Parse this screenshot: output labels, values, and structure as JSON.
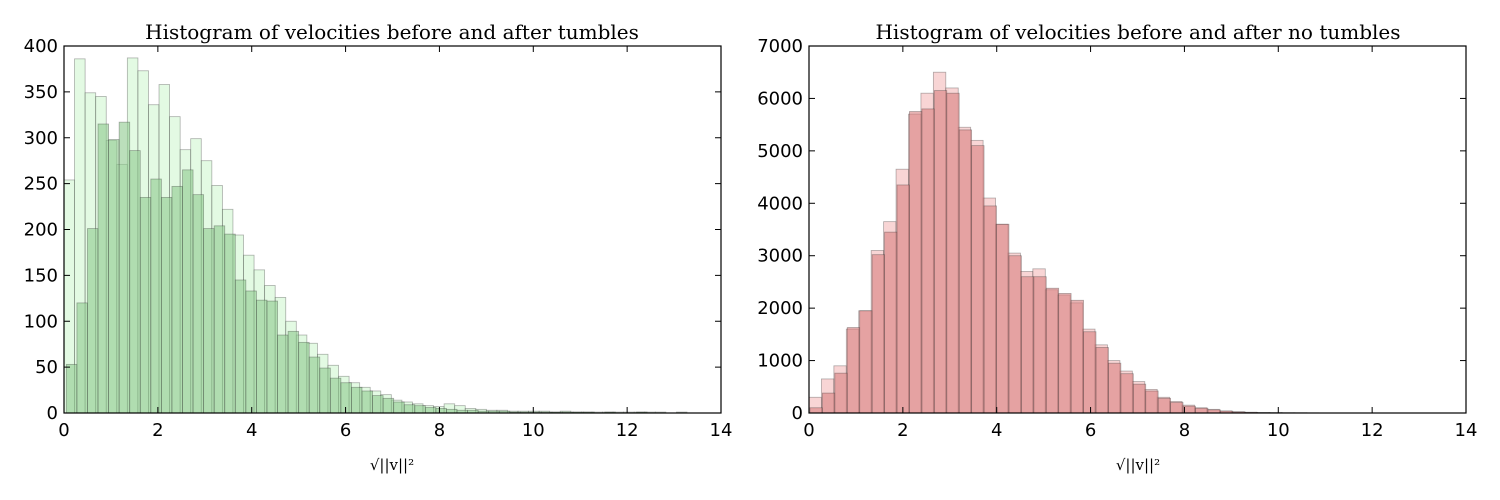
{
  "chart_data": [
    {
      "type": "bar",
      "title": "Histogram of velocities before and after tumbles",
      "xlabel": "√||v||²",
      "ylabel": "",
      "xlim": [
        0,
        14
      ],
      "ylim": [
        0,
        400
      ],
      "xticks": [
        "0",
        "2",
        "4",
        "6",
        "8",
        "10",
        "12",
        "14"
      ],
      "yticks": [
        "0",
        "50",
        "100",
        "150",
        "200",
        "250",
        "300",
        "350",
        "400"
      ],
      "grid": false,
      "colors": {
        "dark": "#8ec98e",
        "light": "#ccf5cc",
        "edge": "#222222"
      },
      "bin_width": 0.225,
      "series": [
        {
          "x_start": 0,
          "values": [
            254,
            386,
            349,
            345,
            297,
            271,
            387,
            373,
            336,
            358,
            323,
            287,
            299,
            275,
            248,
            222,
            194,
            172,
            156,
            139,
            126,
            100,
            85,
            76,
            64,
            52,
            40,
            33,
            28,
            24,
            20,
            14,
            12,
            10,
            8,
            7,
            10,
            8,
            5,
            4,
            3,
            3,
            2,
            2,
            2,
            2,
            1,
            2,
            1,
            1,
            1,
            1,
            1,
            1,
            1,
            1,
            1,
            0,
            1
          ]
        },
        {
          "x_start": 0.05,
          "values": [
            53,
            120,
            201,
            315,
            298,
            317,
            286,
            235,
            255,
            235,
            247,
            265,
            238,
            201,
            204,
            195,
            145,
            133,
            123,
            122,
            85,
            89,
            77,
            61,
            49,
            38,
            33,
            28,
            24,
            19,
            16,
            12,
            9,
            8,
            6,
            5,
            4,
            3,
            3,
            2,
            2,
            2,
            1,
            1,
            1,
            1,
            1,
            1,
            1,
            1,
            0,
            1,
            0,
            0,
            1,
            0,
            0,
            0
          ]
        }
      ]
    },
    {
      "type": "bar",
      "title": "Histogram of velocities before and after no tumbles",
      "xlabel": "√||v||²",
      "ylabel": "",
      "xlim": [
        0,
        14
      ],
      "ylim": [
        0,
        7000
      ],
      "xticks": [
        "0",
        "2",
        "4",
        "6",
        "8",
        "10",
        "12",
        "14"
      ],
      "yticks": [
        "0",
        "1000",
        "2000",
        "3000",
        "4000",
        "5000",
        "6000",
        "7000"
      ],
      "grid": false,
      "colors": {
        "dark": "#d98080",
        "light": "#f2b3b3",
        "edge": "#222222"
      },
      "bin_width": 0.265,
      "series": [
        {
          "x_start": 0,
          "values": [
            300,
            650,
            900,
            1600,
            1950,
            3100,
            3650,
            4650,
            5700,
            6100,
            6500,
            6200,
            5450,
            5200,
            4100,
            3600,
            3050,
            2700,
            2750,
            2350,
            2250,
            2100,
            1600,
            1300,
            1000,
            800,
            600,
            450,
            300,
            220,
            150,
            100,
            70,
            40,
            25,
            15,
            10,
            8,
            5,
            4,
            3,
            2,
            2,
            1,
            1,
            1,
            1,
            1,
            1,
            1,
            1,
            1,
            1
          ]
        },
        {
          "x_start": 0.02,
          "values": [
            100,
            380,
            760,
            1630,
            1950,
            3020,
            3450,
            4350,
            5750,
            5800,
            6150,
            6100,
            5400,
            5100,
            3950,
            3600,
            3000,
            2600,
            2600,
            2380,
            2280,
            2150,
            1550,
            1250,
            950,
            750,
            550,
            420,
            280,
            200,
            130,
            90,
            60,
            35,
            20,
            12,
            8,
            6,
            4,
            3,
            2,
            2,
            1,
            1,
            1,
            1,
            1,
            1,
            1,
            1,
            1,
            1
          ]
        }
      ]
    }
  ]
}
